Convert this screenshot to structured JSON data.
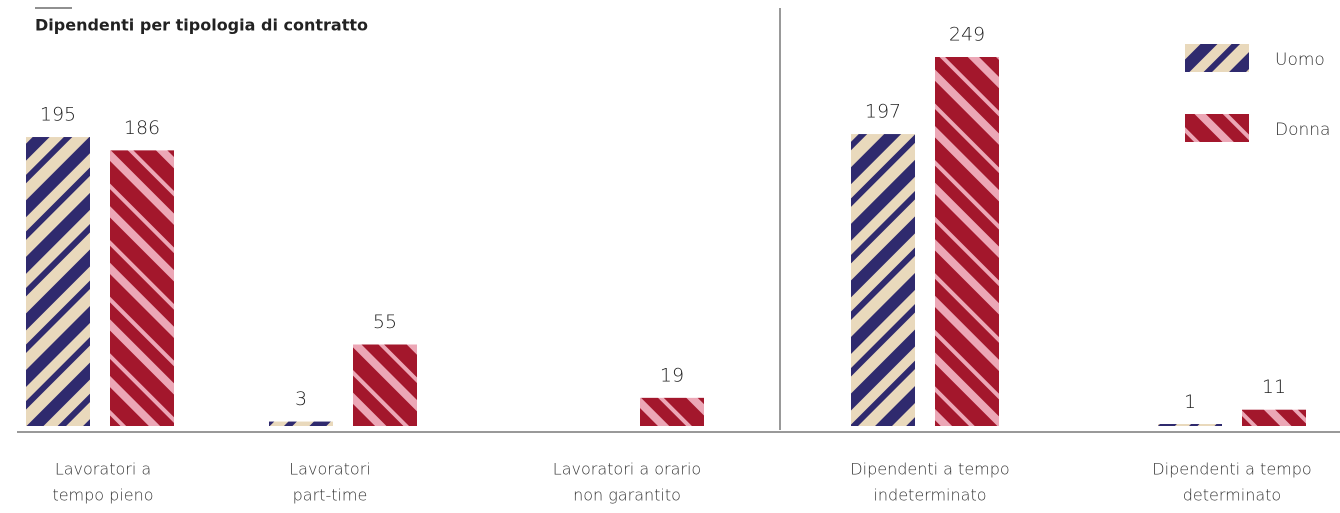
{
  "chart_data": {
    "type": "bar",
    "title": "Dipendenti per tipologia di contratto",
    "categories": [
      [
        "Lavoratori a",
        "tempo pieno"
      ],
      [
        "Lavoratori",
        "part-time"
      ],
      [
        "Lavoratori a orario",
        "non garantito"
      ],
      [
        "Dipendenti a tempo",
        "indeterminato"
      ],
      [
        "Dipendenti a tempo",
        "determinato"
      ]
    ],
    "series": [
      {
        "name": "Uomo",
        "color": "#2f2a6e",
        "values": [
          195,
          3,
          null,
          197,
          1
        ]
      },
      {
        "name": "Donna",
        "color": "#a3172c",
        "values": [
          186,
          55,
          19,
          249,
          11
        ]
      }
    ]
  }
}
